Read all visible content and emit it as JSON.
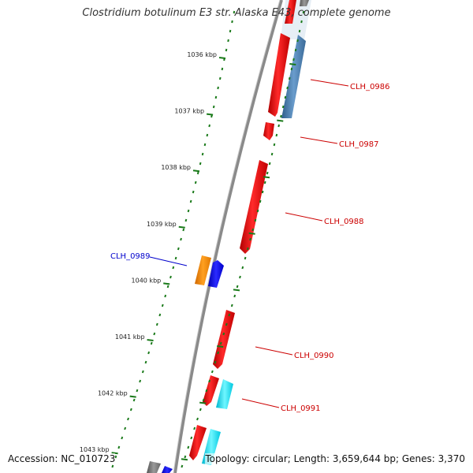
{
  "title": "Clostridium botulinum E3 str. Alaska E43, complete genome",
  "footer": {
    "accession": "Accession: NC_010723",
    "topology": "Topology: circular; Length: 3,659,644 bp; Genes: 3,370"
  },
  "colors": {
    "forward_gene": "#ff0000",
    "reverse_gene": "#4f81bd",
    "orange_gene": "#ff8c00",
    "blue_gene": "#0000ff",
    "cyan_gene": "#00e5ff",
    "gray_gene": "#808080",
    "backbone": "#888888",
    "tick": "#1a7a1a",
    "label_red": "#cc0000",
    "label_blue": "#0000cc"
  },
  "ticks": [
    {
      "label": "1036 kbp"
    },
    {
      "label": "1037 kbp"
    },
    {
      "label": "1038 kbp"
    },
    {
      "label": "1039 kbp"
    },
    {
      "label": "1040 kbp"
    },
    {
      "label": "1041 kbp"
    },
    {
      "label": "1042 kbp"
    },
    {
      "label": "1043 kbp"
    }
  ],
  "genes": [
    {
      "name": "CLH_0986",
      "color_key": "label_red"
    },
    {
      "name": "CLH_0987",
      "color_key": "label_red"
    },
    {
      "name": "CLH_0988",
      "color_key": "label_red"
    },
    {
      "name": "CLH_0989",
      "color_key": "label_blue"
    },
    {
      "name": "CLH_0990",
      "color_key": "label_red"
    },
    {
      "name": "CLH_0991",
      "color_key": "label_red"
    }
  ]
}
